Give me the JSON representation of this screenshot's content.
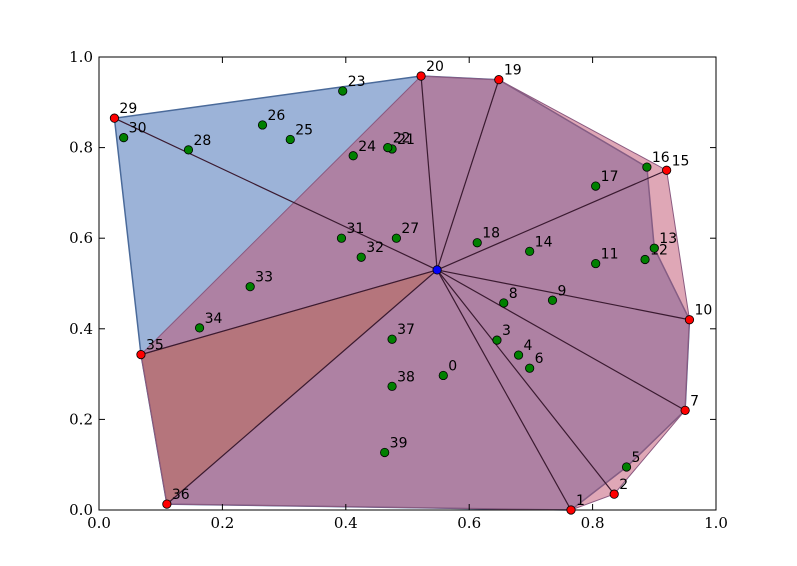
{
  "chart_data": {
    "type": "scatter",
    "title": "",
    "xlabel": "",
    "ylabel": "",
    "xlim": [
      0,
      1
    ],
    "ylim": [
      0,
      1
    ],
    "xticks": [
      "0.0",
      "0.2",
      "0.4",
      "0.6",
      "0.8",
      "1.0"
    ],
    "yticks": [
      "0.0",
      "0.2",
      "0.4",
      "0.6",
      "0.8",
      "1.0"
    ],
    "grid": false,
    "colors": {
      "hull_point": "#ff0000",
      "interior_point": "#008000",
      "center_point": "#0000ff",
      "outer_polygon_fill": "#4b74b8",
      "inner_polygon_fill": "#c0506e",
      "triangle_fill": "#b8864a",
      "edge_color": "#3a1a30"
    },
    "center": {
      "x": 0.548,
      "y": 0.53
    },
    "points": [
      {
        "label": "0",
        "x": 0.558,
        "y": 0.297,
        "kind": "interior"
      },
      {
        "label": "1",
        "x": 0.765,
        "y": 0.0,
        "kind": "hull"
      },
      {
        "label": "2",
        "x": 0.835,
        "y": 0.035,
        "kind": "hull"
      },
      {
        "label": "3",
        "x": 0.645,
        "y": 0.375,
        "kind": "interior"
      },
      {
        "label": "4",
        "x": 0.68,
        "y": 0.342,
        "kind": "interior"
      },
      {
        "label": "5",
        "x": 0.855,
        "y": 0.095,
        "kind": "interior"
      },
      {
        "label": "6",
        "x": 0.698,
        "y": 0.313,
        "kind": "interior"
      },
      {
        "label": "7",
        "x": 0.95,
        "y": 0.22,
        "kind": "hull"
      },
      {
        "label": "8",
        "x": 0.656,
        "y": 0.457,
        "kind": "interior"
      },
      {
        "label": "9",
        "x": 0.735,
        "y": 0.463,
        "kind": "interior"
      },
      {
        "label": "10",
        "x": 0.957,
        "y": 0.42,
        "kind": "hull"
      },
      {
        "label": "11",
        "x": 0.805,
        "y": 0.544,
        "kind": "interior"
      },
      {
        "label": "12",
        "x": 0.885,
        "y": 0.553,
        "kind": "interior"
      },
      {
        "label": "13",
        "x": 0.9,
        "y": 0.578,
        "kind": "interior"
      },
      {
        "label": "14",
        "x": 0.698,
        "y": 0.571,
        "kind": "interior"
      },
      {
        "label": "15",
        "x": 0.92,
        "y": 0.75,
        "kind": "hull"
      },
      {
        "label": "16",
        "x": 0.888,
        "y": 0.757,
        "kind": "interior"
      },
      {
        "label": "17",
        "x": 0.805,
        "y": 0.715,
        "kind": "interior"
      },
      {
        "label": "18",
        "x": 0.613,
        "y": 0.59,
        "kind": "interior"
      },
      {
        "label": "19",
        "x": 0.648,
        "y": 0.95,
        "kind": "hull"
      },
      {
        "label": "20",
        "x": 0.522,
        "y": 0.958,
        "kind": "hull"
      },
      {
        "label": "21",
        "x": 0.475,
        "y": 0.797,
        "kind": "interior"
      },
      {
        "label": "22",
        "x": 0.468,
        "y": 0.8,
        "kind": "interior"
      },
      {
        "label": "23",
        "x": 0.395,
        "y": 0.925,
        "kind": "interior"
      },
      {
        "label": "24",
        "x": 0.412,
        "y": 0.782,
        "kind": "interior"
      },
      {
        "label": "25",
        "x": 0.31,
        "y": 0.818,
        "kind": "interior"
      },
      {
        "label": "26",
        "x": 0.265,
        "y": 0.85,
        "kind": "interior"
      },
      {
        "label": "27",
        "x": 0.482,
        "y": 0.6,
        "kind": "interior"
      },
      {
        "label": "28",
        "x": 0.145,
        "y": 0.795,
        "kind": "interior"
      },
      {
        "label": "29",
        "x": 0.025,
        "y": 0.865,
        "kind": "hull"
      },
      {
        "label": "30",
        "x": 0.04,
        "y": 0.822,
        "kind": "interior"
      },
      {
        "label": "31",
        "x": 0.393,
        "y": 0.6,
        "kind": "interior"
      },
      {
        "label": "32",
        "x": 0.425,
        "y": 0.558,
        "kind": "interior"
      },
      {
        "label": "33",
        "x": 0.245,
        "y": 0.493,
        "kind": "interior"
      },
      {
        "label": "34",
        "x": 0.163,
        "y": 0.402,
        "kind": "interior"
      },
      {
        "label": "35",
        "x": 0.068,
        "y": 0.343,
        "kind": "hull"
      },
      {
        "label": "36",
        "x": 0.11,
        "y": 0.013,
        "kind": "hull"
      },
      {
        "label": "37",
        "x": 0.475,
        "y": 0.377,
        "kind": "interior"
      },
      {
        "label": "38",
        "x": 0.475,
        "y": 0.273,
        "kind": "interior"
      },
      {
        "label": "39",
        "x": 0.463,
        "y": 0.127,
        "kind": "interior"
      }
    ],
    "outer_polygon": [
      "29",
      "20",
      "19",
      "16",
      "13",
      "10",
      "7",
      "5",
      "1",
      "36",
      "35"
    ],
    "inner_polygon": [
      "20",
      "19",
      "15",
      "10",
      "7",
      "2",
      "1",
      "36",
      "35"
    ],
    "triangle": [
      "35",
      "36",
      "center"
    ],
    "spokes_to": [
      "29",
      "20",
      "19",
      "15",
      "10",
      "7",
      "2",
      "1",
      "36",
      "35"
    ]
  }
}
